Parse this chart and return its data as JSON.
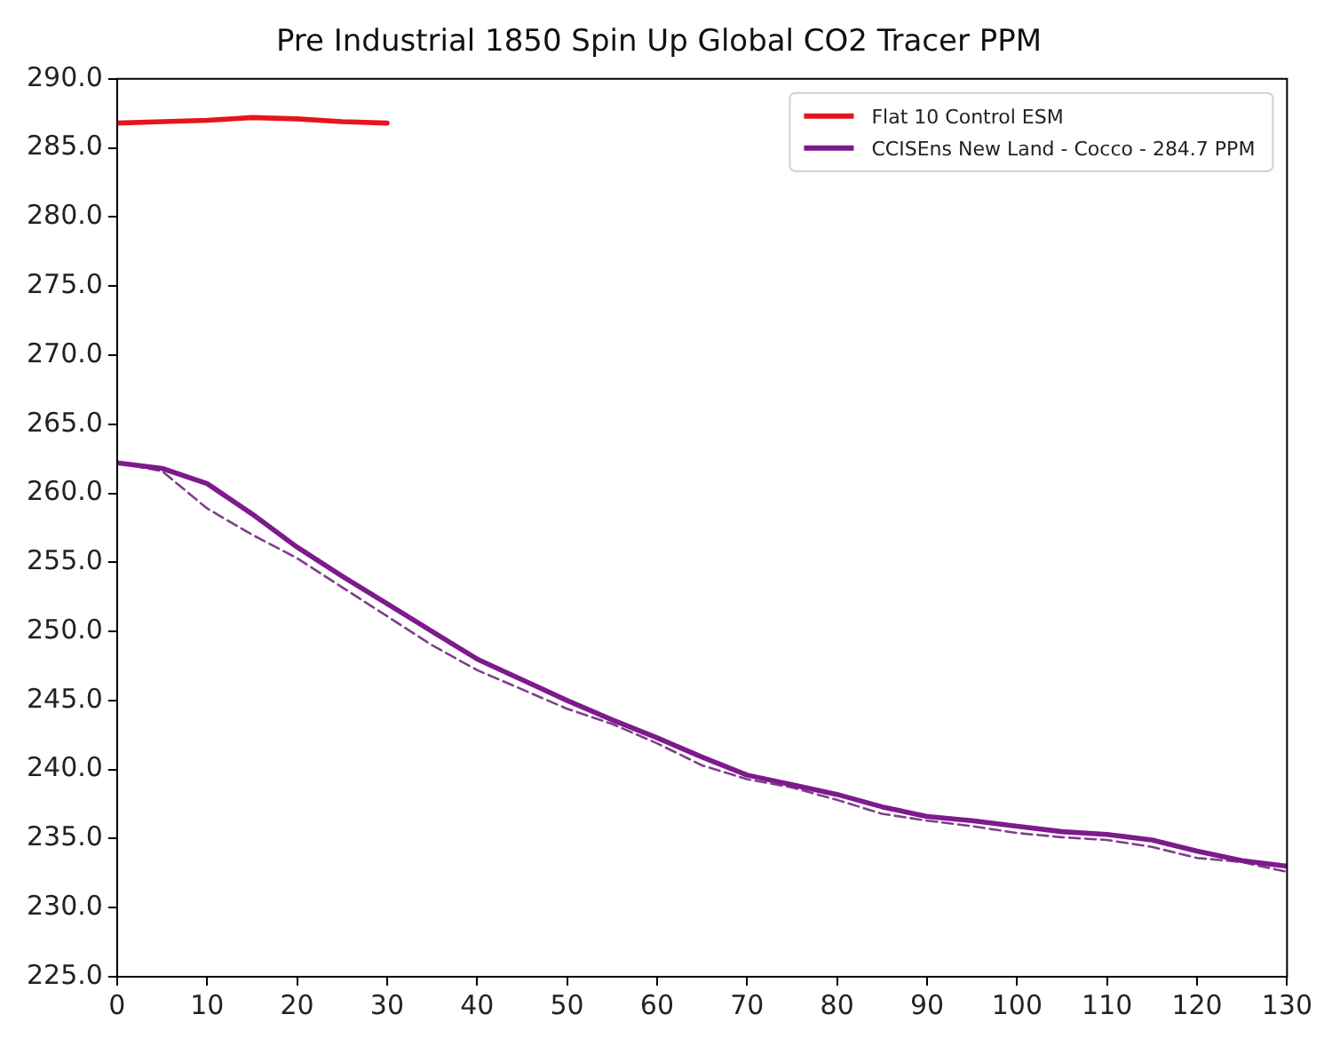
{
  "chart_data": {
    "type": "line",
    "title": "Pre Industrial 1850 Spin Up Global CO2 Tracer PPM",
    "xlim": [
      0,
      130
    ],
    "xticks": [
      0,
      10,
      20,
      30,
      40,
      50,
      60,
      70,
      80,
      90,
      100,
      110,
      120,
      130
    ],
    "ylim": [
      225,
      290
    ],
    "yticks": [
      {
        "value": 225,
        "label": "225.0"
      },
      {
        "value": 230,
        "label": "230.0"
      },
      {
        "value": 235,
        "label": "235.0"
      },
      {
        "value": 240,
        "label": "240.0"
      },
      {
        "value": 245,
        "label": "245.0"
      },
      {
        "value": 250,
        "label": "250.0"
      },
      {
        "value": 255,
        "label": "255.0"
      },
      {
        "value": 260,
        "label": "260.0"
      },
      {
        "value": 265,
        "label": "265.0"
      },
      {
        "value": 270,
        "label": "270.0"
      },
      {
        "value": 275,
        "label": "275.0"
      },
      {
        "value": 280,
        "label": "280.0"
      },
      {
        "value": 285,
        "label": "285.0"
      },
      {
        "value": 290,
        "label": "290.0"
      }
    ],
    "grid": false,
    "legend": "top right",
    "marker": "none",
    "series": [
      {
        "name": "Flat 10 Control ESM",
        "color": "#e8141c",
        "line_style": "solid",
        "x": [
          0,
          5,
          10,
          15,
          20,
          25,
          30
        ],
        "values": [
          286.8,
          286.9,
          287.0,
          287.2,
          287.1,
          286.9,
          286.8
        ]
      },
      {
        "name": "CCISEns New Land - Cocco - 284.7 PPM",
        "color": "#7d1a8c",
        "line_style": "solid",
        "x": [
          0,
          5,
          10,
          15,
          20,
          25,
          30,
          35,
          40,
          45,
          50,
          55,
          60,
          65,
          70,
          75,
          80,
          85,
          90,
          95,
          100,
          105,
          110,
          115,
          120,
          125,
          130
        ],
        "values": [
          262.2,
          261.8,
          260.7,
          258.5,
          256.1,
          254.0,
          252.0,
          250.0,
          248.0,
          246.5,
          245.0,
          243.6,
          242.3,
          240.9,
          239.6,
          238.9,
          238.2,
          237.3,
          236.6,
          236.3,
          235.9,
          235.5,
          235.3,
          234.9,
          234.1,
          233.4,
          233.0
        ]
      },
      {
        "color": "#7e3f8a",
        "line_style": "dashed",
        "x": [
          0,
          5,
          10,
          15,
          20,
          25,
          30,
          35,
          40,
          45,
          50,
          55,
          60,
          65,
          70,
          75,
          80,
          85,
          90,
          95,
          100,
          105,
          110,
          115,
          120,
          125,
          130
        ],
        "values": [
          262.2,
          261.6,
          258.9,
          257.0,
          255.3,
          253.2,
          251.1,
          249.0,
          247.2,
          245.8,
          244.4,
          243.3,
          241.9,
          240.3,
          239.3,
          238.7,
          237.8,
          236.8,
          236.3,
          235.9,
          235.4,
          235.1,
          234.9,
          234.4,
          233.6,
          233.3,
          232.6
        ]
      }
    ]
  }
}
